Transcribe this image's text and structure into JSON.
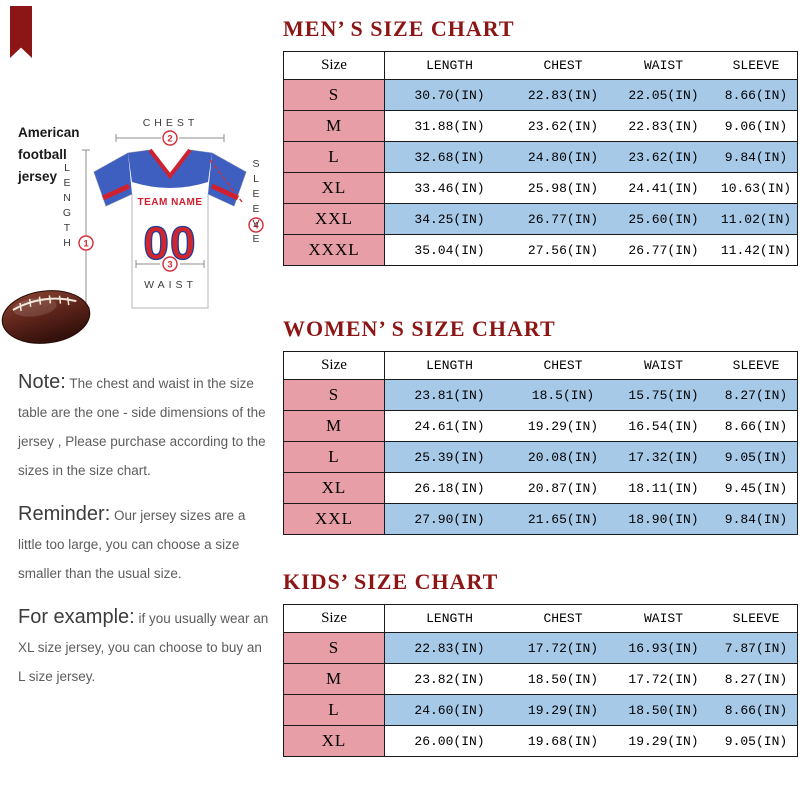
{
  "colors": {
    "title_red": "#8C1616",
    "size_column_pink": "#E79EA6",
    "row_blue": "#A6C9E8",
    "jersey_blue": "#3F5FC0",
    "number_red": "#D2262E"
  },
  "left_panel": {
    "product_label": "American football jersey",
    "jersey": {
      "team_name": "TEAM NAME",
      "number": "00",
      "measure_labels": {
        "chest": "CHEST",
        "sleeve": "SLEEVE",
        "length": "LENGTH",
        "waist": "WAIST"
      },
      "markers": {
        "length": "1",
        "chest": "2",
        "waist": "3",
        "sleeve": "4"
      }
    },
    "notes": [
      {
        "lead": "Note:",
        "text": "The chest and waist in the size table are the one - side dimensions of the jersey , Please purchase according to the sizes in the size chart."
      },
      {
        "lead": "Reminder:",
        "text": "Our jersey sizes are a little too large, you can choose a size smaller than the usual size."
      },
      {
        "lead": "For example:",
        "text": "if you usually wear an XL size jersey, you can choose to buy an L size jersey."
      }
    ]
  },
  "chart_data": [
    {
      "type": "table",
      "title": "MEN’ S SIZE CHART",
      "columns": [
        "Size",
        "LENGTH",
        "CHEST",
        "WAIST",
        "SLEEVE"
      ],
      "rows": [
        [
          "S",
          "30.70(IN)",
          "22.83(IN)",
          "22.05(IN)",
          "8.66(IN)"
        ],
        [
          "M",
          "31.88(IN)",
          "23.62(IN)",
          "22.83(IN)",
          "9.06(IN)"
        ],
        [
          "L",
          "32.68(IN)",
          "24.80(IN)",
          "23.62(IN)",
          "9.84(IN)"
        ],
        [
          "XL",
          "33.46(IN)",
          "25.98(IN)",
          "24.41(IN)",
          "10.63(IN)"
        ],
        [
          "XXL",
          "34.25(IN)",
          "26.77(IN)",
          "25.60(IN)",
          "11.02(IN)"
        ],
        [
          "XXXL",
          "35.04(IN)",
          "27.56(IN)",
          "26.77(IN)",
          "11.42(IN)"
        ]
      ]
    },
    {
      "type": "table",
      "title": "WOMEN’ S SIZE CHART",
      "columns": [
        "Size",
        "LENGTH",
        "CHEST",
        "WAIST",
        "SLEEVE"
      ],
      "rows": [
        [
          "S",
          "23.81(IN)",
          "18.5(IN)",
          "15.75(IN)",
          "8.27(IN)"
        ],
        [
          "M",
          "24.61(IN)",
          "19.29(IN)",
          "16.54(IN)",
          "8.66(IN)"
        ],
        [
          "L",
          "25.39(IN)",
          "20.08(IN)",
          "17.32(IN)",
          "9.05(IN)"
        ],
        [
          "XL",
          "26.18(IN)",
          "20.87(IN)",
          "18.11(IN)",
          "9.45(IN)"
        ],
        [
          "XXL",
          "27.90(IN)",
          "21.65(IN)",
          "18.90(IN)",
          "9.84(IN)"
        ]
      ]
    },
    {
      "type": "table",
      "title": "KIDS’ SIZE CHART",
      "columns": [
        "Size",
        "LENGTH",
        "CHEST",
        "WAIST",
        "SLEEVE"
      ],
      "rows": [
        [
          "S",
          "22.83(IN)",
          "17.72(IN)",
          "16.93(IN)",
          "7.87(IN)"
        ],
        [
          "M",
          "23.82(IN)",
          "18.50(IN)",
          "17.72(IN)",
          "8.27(IN)"
        ],
        [
          "L",
          "24.60(IN)",
          "19.29(IN)",
          "18.50(IN)",
          "8.66(IN)"
        ],
        [
          "XL",
          "26.00(IN)",
          "19.68(IN)",
          "19.29(IN)",
          "9.05(IN)"
        ]
      ]
    }
  ]
}
